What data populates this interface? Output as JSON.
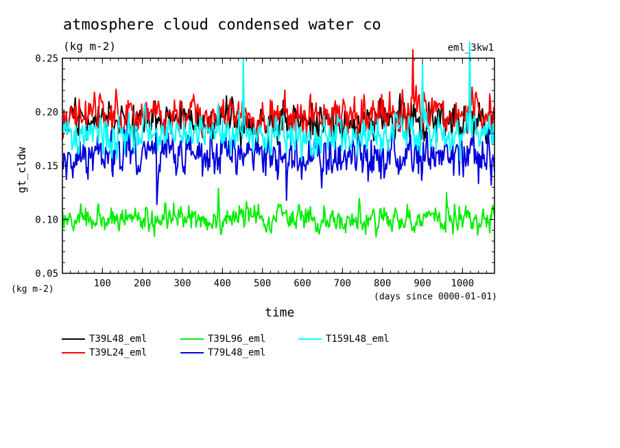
{
  "chart_data": {
    "type": "line",
    "title": "atmosphere cloud condensed water co",
    "subtitle": "(kg m-2)",
    "run_id": "eml_3kw1",
    "xlabel": "time",
    "x_unit": "(days since 0000-01-01)",
    "ylabel": "gt_cldw",
    "y_unit": "(kg m-2)",
    "xlim": [
      0,
      1080
    ],
    "ylim": [
      0.05,
      0.25
    ],
    "x_ticks": [
      "100",
      "200",
      "300",
      "400",
      "500",
      "600",
      "700",
      "800",
      "900",
      "1000"
    ],
    "y_ticks": [
      "0.05",
      "0.10",
      "0.15",
      "0.20",
      "0.25"
    ],
    "sample_step_days": 2,
    "series": [
      {
        "name": "T39L48_eml",
        "color": "#000000",
        "mean": 0.192,
        "spread": 0.012,
        "seed": 11,
        "spikes": []
      },
      {
        "name": "T39L24_eml",
        "color": "#ff0000",
        "mean": 0.196,
        "spread": 0.012,
        "seed": 23,
        "spikes": [
          [
            876,
            0.258
          ]
        ]
      },
      {
        "name": "T39L96_eml",
        "color": "#00ee00",
        "mean": 0.101,
        "spread": 0.008,
        "seed": 37,
        "spikes": [
          [
            390,
            0.129
          ],
          [
            960,
            0.125
          ]
        ]
      },
      {
        "name": "T79L48_eml",
        "color": "#0000dd",
        "mean": 0.16,
        "spread": 0.014,
        "seed": 51,
        "spikes": [
          [
            236,
            0.114
          ],
          [
            560,
            0.118
          ]
        ]
      },
      {
        "name": "T159L48_eml",
        "color": "#00ffff",
        "mean": 0.18,
        "spread": 0.012,
        "seed": 67,
        "spikes": [
          [
            452,
            0.25
          ],
          [
            900,
            0.245
          ],
          [
            1018,
            0.265
          ]
        ]
      }
    ]
  }
}
